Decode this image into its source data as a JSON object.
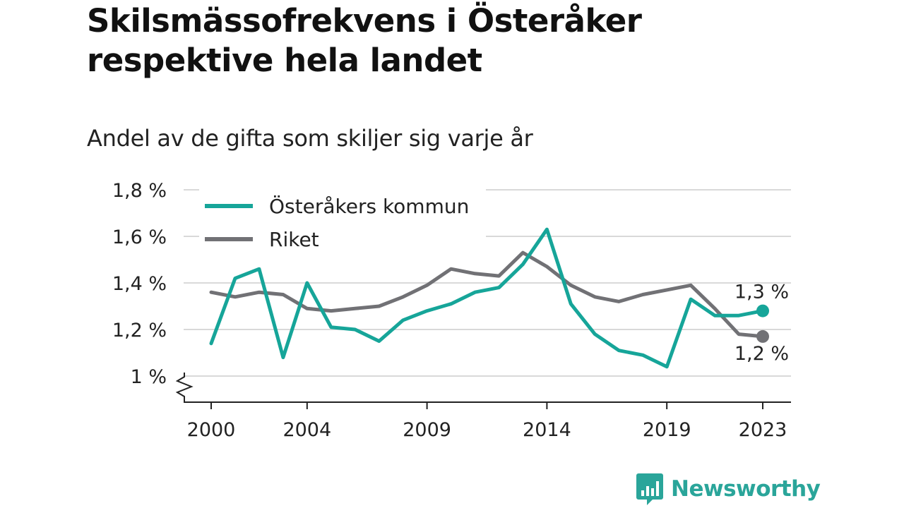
{
  "title": "Skilsmässofrekvens i Österåker respektive hela landet",
  "subtitle": "Andel av de gifta som skiljer sig varje år",
  "brand": {
    "name": "Newsworthy",
    "icon": "bar-chart-speech-bubble-icon",
    "color": "#2aa59a"
  },
  "chart_data": {
    "type": "line",
    "x": [
      2000,
      2001,
      2002,
      2003,
      2004,
      2005,
      2006,
      2007,
      2008,
      2009,
      2010,
      2011,
      2012,
      2013,
      2014,
      2015,
      2016,
      2017,
      2018,
      2019,
      2020,
      2021,
      2022,
      2023
    ],
    "xticks": [
      2000,
      2004,
      2009,
      2014,
      2019,
      2023
    ],
    "yticks": [
      {
        "value": 1.0,
        "label": "1 %"
      },
      {
        "value": 1.2,
        "label": "1,2 %"
      },
      {
        "value": 1.4,
        "label": "1,4 %"
      },
      {
        "value": 1.6,
        "label": "1,6 %"
      },
      {
        "value": 1.8,
        "label": "1,8 %"
      }
    ],
    "ylim": [
      0.89,
      1.8
    ],
    "axis_break": true,
    "grid": true,
    "legend_position": "top-left",
    "series": [
      {
        "name": "Österåkers kommun",
        "color": "#16a599",
        "values": [
          1.14,
          1.42,
          1.46,
          1.08,
          1.4,
          1.21,
          1.2,
          1.15,
          1.24,
          1.28,
          1.31,
          1.36,
          1.38,
          1.48,
          1.63,
          1.31,
          1.18,
          1.11,
          1.09,
          1.04,
          1.33,
          1.26,
          1.26,
          1.28
        ],
        "end_label": "1,3 %"
      },
      {
        "name": "Riket",
        "color": "#717175",
        "values": [
          1.36,
          1.34,
          1.36,
          1.35,
          1.29,
          1.28,
          1.29,
          1.3,
          1.34,
          1.39,
          1.46,
          1.44,
          1.43,
          1.53,
          1.47,
          1.39,
          1.34,
          1.32,
          1.35,
          1.37,
          1.39,
          1.29,
          1.18,
          1.17
        ],
        "end_label": "1,2 %"
      }
    ]
  }
}
